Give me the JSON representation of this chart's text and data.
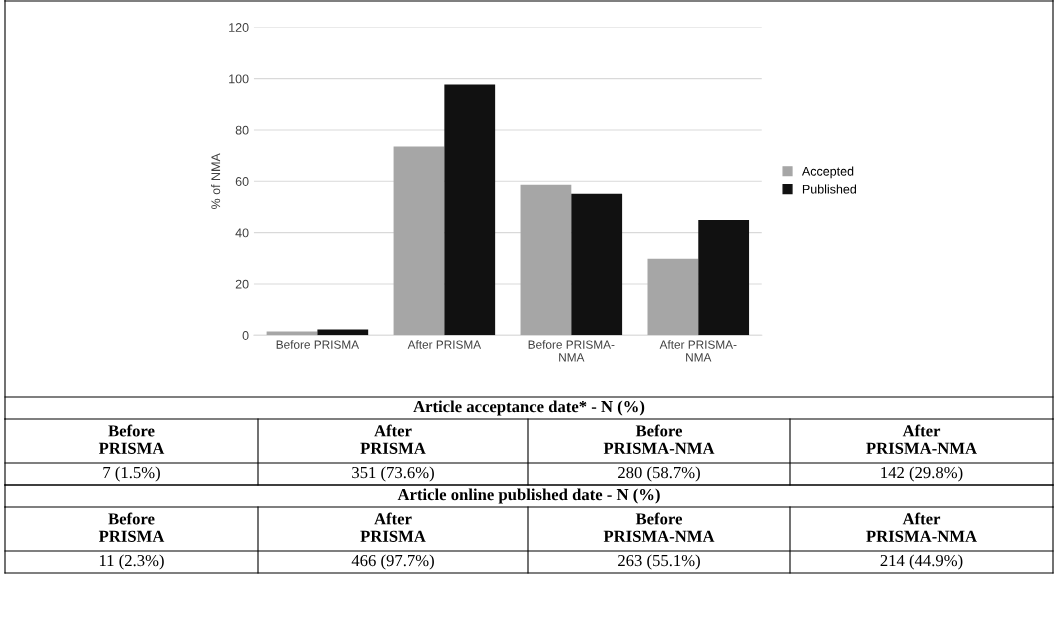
{
  "chart_data": {
    "type": "bar",
    "ylabel": "% of NMA",
    "categories": [
      "Before PRISMA",
      "After PRISMA",
      "Before PRISMA-NMA",
      "After PRISMA-NMA"
    ],
    "series": [
      {
        "name": "Accepted",
        "color": "#a6a6a6",
        "values": [
          1.5,
          73.6,
          58.7,
          29.8
        ]
      },
      {
        "name": "Published",
        "color": "#111111",
        "values": [
          2.3,
          97.7,
          55.1,
          44.9
        ]
      }
    ],
    "annotations": [
      "Article acceptance date* - N (%)",
      "7 (1.5%)",
      "351 (73.6%)",
      "280 (58.7%)",
      "142 (29.8%)",
      "Article online published date - N (%)",
      "11 (2.3%)",
      "466 (97.7%)",
      "263 (55.1%)",
      "214 (44.9%)"
    ],
    "ylim": [
      0,
      120
    ],
    "yticks": [
      0,
      20,
      40,
      60,
      80,
      100,
      120
    ],
    "grid": "y",
    "legend": "right"
  }
}
